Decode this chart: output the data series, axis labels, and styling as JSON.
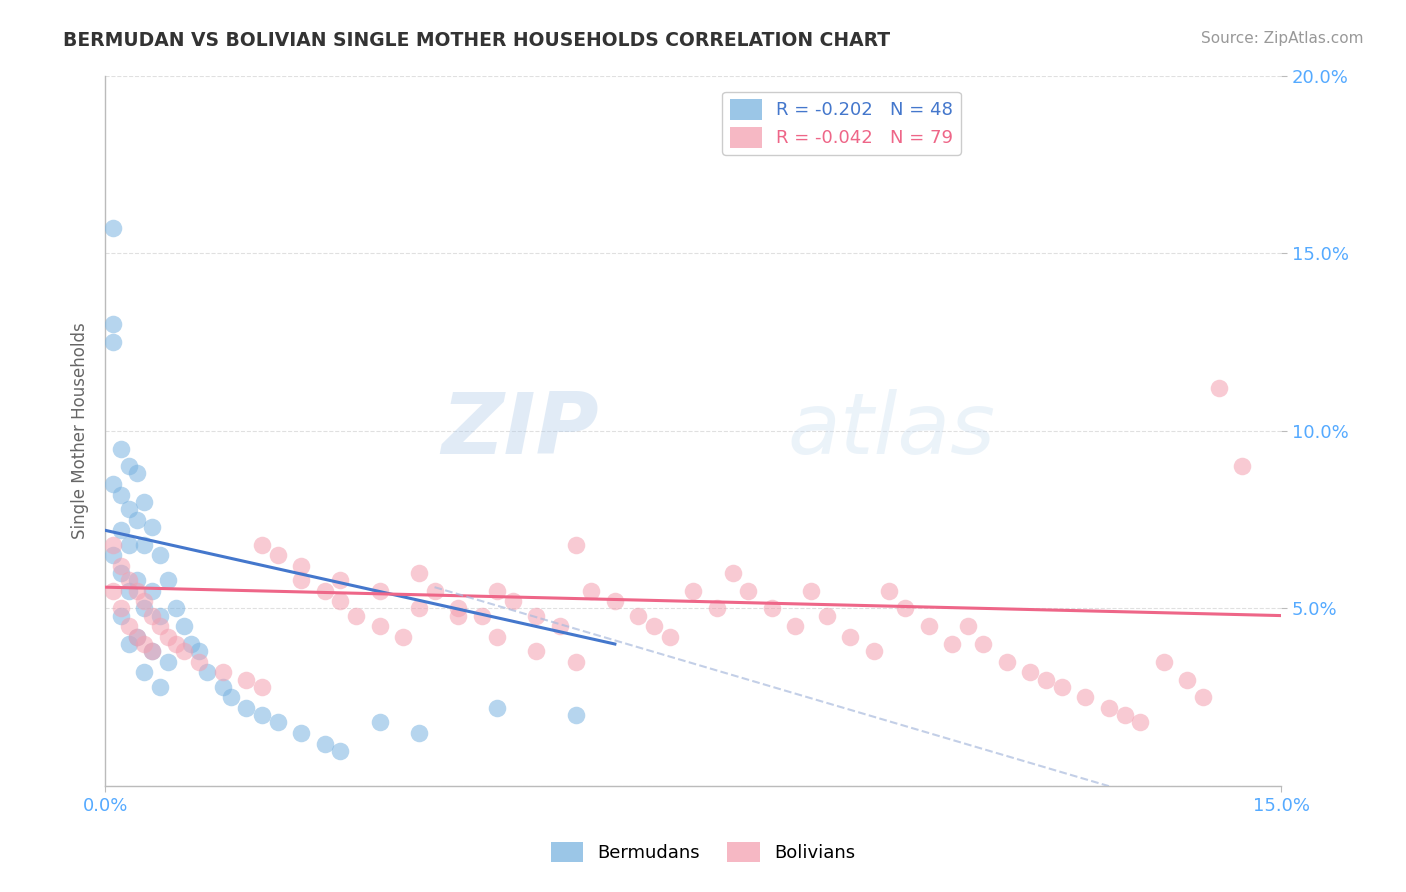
{
  "title": "BERMUDAN VS BOLIVIAN SINGLE MOTHER HOUSEHOLDS CORRELATION CHART",
  "source": "Source: ZipAtlas.com",
  "ylabel": "Single Mother Households",
  "legend_blue": "R = -0.202   N = 48",
  "legend_pink": "R = -0.042   N = 79",
  "legend_label_blue": "Bermudans",
  "legend_label_pink": "Bolivians",
  "xlim": [
    0.0,
    0.15
  ],
  "ylim": [
    0.0,
    0.2
  ],
  "watermark_zip": "ZIP",
  "watermark_atlas": "atlas",
  "bg_color": "#ffffff",
  "blue_color": "#7ab3e0",
  "pink_color": "#f4a0b0",
  "blue_line_color": "#4477cc",
  "pink_line_color": "#ee6688",
  "grid_color": "#cccccc",
  "title_color": "#333333",
  "source_color": "#999999",
  "tick_label_color": "#55aaff",
  "ylabel_color": "#666666",
  "bermudans_x": [
    0.001,
    0.001,
    0.001,
    0.001,
    0.001,
    0.002,
    0.002,
    0.002,
    0.002,
    0.002,
    0.003,
    0.003,
    0.003,
    0.003,
    0.003,
    0.004,
    0.004,
    0.004,
    0.004,
    0.005,
    0.005,
    0.005,
    0.005,
    0.006,
    0.006,
    0.006,
    0.007,
    0.007,
    0.007,
    0.008,
    0.008,
    0.009,
    0.01,
    0.011,
    0.012,
    0.013,
    0.015,
    0.016,
    0.018,
    0.02,
    0.022,
    0.025,
    0.028,
    0.03,
    0.035,
    0.04,
    0.05,
    0.06
  ],
  "bermudans_y": [
    0.157,
    0.13,
    0.125,
    0.085,
    0.065,
    0.095,
    0.082,
    0.072,
    0.06,
    0.048,
    0.09,
    0.078,
    0.068,
    0.055,
    0.04,
    0.088,
    0.075,
    0.058,
    0.042,
    0.08,
    0.068,
    0.05,
    0.032,
    0.073,
    0.055,
    0.038,
    0.065,
    0.048,
    0.028,
    0.058,
    0.035,
    0.05,
    0.045,
    0.04,
    0.038,
    0.032,
    0.028,
    0.025,
    0.022,
    0.02,
    0.018,
    0.015,
    0.012,
    0.01,
    0.018,
    0.015,
    0.022,
    0.02
  ],
  "bolivians_x": [
    0.001,
    0.001,
    0.002,
    0.002,
    0.003,
    0.003,
    0.004,
    0.004,
    0.005,
    0.005,
    0.006,
    0.006,
    0.007,
    0.008,
    0.009,
    0.01,
    0.012,
    0.015,
    0.018,
    0.02,
    0.022,
    0.025,
    0.028,
    0.03,
    0.032,
    0.035,
    0.038,
    0.04,
    0.042,
    0.045,
    0.048,
    0.05,
    0.052,
    0.055,
    0.058,
    0.06,
    0.062,
    0.065,
    0.068,
    0.07,
    0.072,
    0.075,
    0.078,
    0.08,
    0.082,
    0.085,
    0.088,
    0.09,
    0.092,
    0.095,
    0.098,
    0.1,
    0.102,
    0.105,
    0.108,
    0.11,
    0.112,
    0.115,
    0.118,
    0.12,
    0.122,
    0.125,
    0.128,
    0.13,
    0.132,
    0.135,
    0.138,
    0.14,
    0.142,
    0.145,
    0.02,
    0.025,
    0.03,
    0.035,
    0.04,
    0.045,
    0.05,
    0.055,
    0.06
  ],
  "bolivians_y": [
    0.068,
    0.055,
    0.062,
    0.05,
    0.058,
    0.045,
    0.055,
    0.042,
    0.052,
    0.04,
    0.048,
    0.038,
    0.045,
    0.042,
    0.04,
    0.038,
    0.035,
    0.032,
    0.03,
    0.028,
    0.065,
    0.058,
    0.055,
    0.052,
    0.048,
    0.045,
    0.042,
    0.06,
    0.055,
    0.05,
    0.048,
    0.055,
    0.052,
    0.048,
    0.045,
    0.068,
    0.055,
    0.052,
    0.048,
    0.045,
    0.042,
    0.055,
    0.05,
    0.06,
    0.055,
    0.05,
    0.045,
    0.055,
    0.048,
    0.042,
    0.038,
    0.055,
    0.05,
    0.045,
    0.04,
    0.045,
    0.04,
    0.035,
    0.032,
    0.03,
    0.028,
    0.025,
    0.022,
    0.02,
    0.018,
    0.035,
    0.03,
    0.025,
    0.112,
    0.09,
    0.068,
    0.062,
    0.058,
    0.055,
    0.05,
    0.048,
    0.042,
    0.038,
    0.035
  ],
  "blue_line_x": [
    0.0,
    0.065
  ],
  "blue_line_y": [
    0.072,
    0.04
  ],
  "pink_line_x": [
    0.0,
    0.15
  ],
  "pink_line_y": [
    0.056,
    0.048
  ],
  "dash_line_x": [
    0.042,
    0.128
  ],
  "dash_line_y": [
    0.056,
    0.0
  ]
}
